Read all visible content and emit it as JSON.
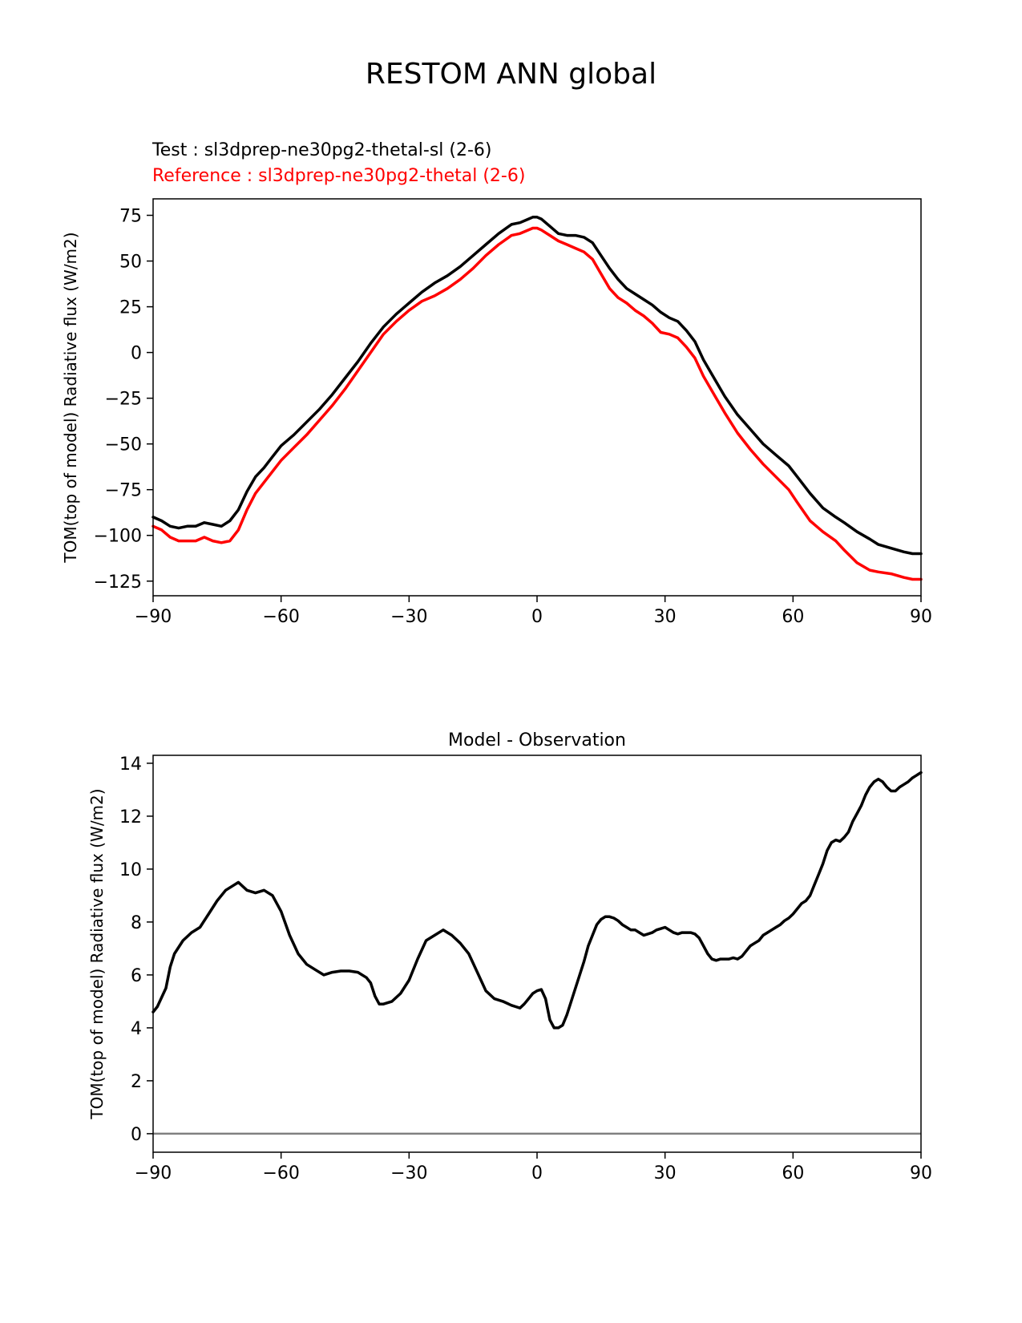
{
  "figure": {
    "title": "RESTOM ANN global",
    "test_label": "Test : sl3dprep-ne30pg2-thetal-sl (2-6)",
    "reference_label": "Reference : sl3dprep-ne30pg2-thetal (2-6)"
  },
  "colors": {
    "test": "#000000",
    "reference": "#ff0000",
    "zero_line": "#808080"
  },
  "chart_data": [
    {
      "type": "line",
      "title": "",
      "xlabel": "",
      "ylabel": "TOM(top of model) Radiative flux (W/m2)",
      "xlim": [
        -90,
        90
      ],
      "ylim": [
        -133,
        84
      ],
      "xticks": [
        -90,
        -60,
        -30,
        0,
        30,
        60,
        90
      ],
      "xtick_labels": [
        "−90",
        "−60",
        "−30",
        "0",
        "30",
        "60",
        "90"
      ],
      "yticks": [
        75,
        50,
        25,
        0,
        -25,
        -50,
        -75,
        -100,
        -125
      ],
      "ytick_labels": [
        "75",
        "50",
        "25",
        "0",
        "−25",
        "−50",
        "−75",
        "−100",
        "−125"
      ],
      "grid": false,
      "series": [
        {
          "name": "Test : sl3dprep-ne30pg2-thetal-sl (2-6)",
          "color": "#000000",
          "x": [
            -90,
            -88,
            -86,
            -84,
            -82,
            -80,
            -78,
            -76,
            -74,
            -72,
            -70,
            -68,
            -66,
            -64,
            -62,
            -60,
            -57,
            -54,
            -51,
            -48,
            -45,
            -42,
            -39,
            -36,
            -33,
            -30,
            -27,
            -24,
            -21,
            -18,
            -15,
            -12,
            -9,
            -6,
            -4,
            -2,
            -1,
            0,
            1,
            3,
            5,
            7,
            9,
            11,
            13,
            15,
            17,
            19,
            21,
            23,
            25,
            27,
            29,
            31,
            33,
            35,
            37,
            39,
            41,
            44,
            47,
            50,
            53,
            56,
            59,
            61,
            64,
            67,
            70,
            72,
            75,
            78,
            80,
            83,
            86,
            88,
            90
          ],
          "y": [
            -90,
            -92,
            -95,
            -96,
            -95,
            -95,
            -93,
            -94,
            -95,
            -92,
            -86,
            -76,
            -68,
            -63,
            -57,
            -51,
            -45,
            -38,
            -31,
            -23,
            -14,
            -5,
            5,
            14,
            21,
            27,
            33,
            38,
            42,
            47,
            53,
            59,
            65,
            70,
            71,
            73,
            74,
            74,
            73,
            69,
            65,
            64,
            64,
            63,
            60,
            53,
            46,
            40,
            35,
            32,
            29,
            26,
            22,
            19,
            17,
            12,
            6,
            -4,
            -12,
            -24,
            -34,
            -42,
            -50,
            -56,
            -62,
            -68,
            -77,
            -85,
            -90,
            -93,
            -98,
            -102,
            -105,
            -107,
            -109,
            -110,
            -110
          ]
        },
        {
          "name": "Reference : sl3dprep-ne30pg2-thetal (2-6)",
          "color": "#ff0000",
          "x": [
            -90,
            -88,
            -86,
            -84,
            -82,
            -80,
            -78,
            -76,
            -74,
            -72,
            -70,
            -68,
            -66,
            -64,
            -62,
            -60,
            -57,
            -54,
            -51,
            -48,
            -45,
            -42,
            -39,
            -36,
            -33,
            -30,
            -27,
            -24,
            -21,
            -18,
            -15,
            -12,
            -9,
            -6,
            -4,
            -2,
            -1,
            0,
            1,
            3,
            5,
            7,
            9,
            11,
            13,
            15,
            17,
            19,
            21,
            23,
            25,
            27,
            29,
            31,
            33,
            35,
            37,
            39,
            41,
            44,
            47,
            50,
            53,
            56,
            59,
            61,
            64,
            67,
            70,
            72,
            75,
            78,
            80,
            83,
            86,
            88,
            90
          ],
          "y": [
            -95,
            -97,
            -101,
            -103,
            -103,
            -103,
            -101,
            -103,
            -104,
            -103,
            -97,
            -86,
            -77,
            -71,
            -65,
            -59,
            -52,
            -45,
            -37,
            -29,
            -20,
            -10,
            0,
            10,
            17,
            23,
            28,
            31,
            35,
            40,
            46,
            53,
            59,
            64,
            65,
            67,
            68,
            68,
            67,
            64,
            61,
            59,
            57,
            55,
            51,
            43,
            35,
            30,
            27,
            23,
            20,
            16,
            11,
            10,
            8,
            3,
            -3,
            -13,
            -21,
            -33,
            -44,
            -53,
            -61,
            -68,
            -75,
            -82,
            -92,
            -98,
            -103,
            -108,
            -115,
            -119,
            -120,
            -121,
            -123,
            -124,
            -124
          ]
        }
      ]
    },
    {
      "type": "line",
      "title": "Model - Observation",
      "xlabel": "",
      "ylabel": "TOM(top of model) Radiative flux (W/m2)",
      "xlim": [
        -90,
        90
      ],
      "ylim": [
        -0.7,
        14.3
      ],
      "xticks": [
        -90,
        -60,
        -30,
        0,
        30,
        60,
        90
      ],
      "xtick_labels": [
        "−90",
        "−60",
        "−30",
        "0",
        "30",
        "60",
        "90"
      ],
      "yticks": [
        14,
        12,
        10,
        8,
        6,
        4,
        2,
        0
      ],
      "ytick_labels": [
        "14",
        "12",
        "10",
        "8",
        "6",
        "4",
        "2",
        "0"
      ],
      "grid": false,
      "zero_line": 0,
      "series": [
        {
          "color": "#000000",
          "x": [
            -90,
            -89,
            -87,
            -86,
            -85,
            -83,
            -81,
            -79,
            -77,
            -75,
            -73,
            -71,
            -70,
            -68,
            -66,
            -64,
            -62,
            -60,
            -58,
            -56,
            -54,
            -52,
            -50,
            -48,
            -46,
            -44,
            -42,
            -40,
            -39,
            -38,
            -37,
            -36,
            -34,
            -32,
            -30,
            -28,
            -26,
            -24,
            -22,
            -20,
            -18,
            -16,
            -14,
            -12,
            -10,
            -8,
            -6,
            -5,
            -4,
            -3,
            -2,
            -1,
            0,
            1,
            2,
            3,
            4,
            5,
            6,
            7,
            8,
            9,
            10,
            11,
            12,
            13,
            14,
            15,
            16,
            17,
            18,
            19,
            20,
            21,
            22,
            23,
            24,
            25,
            26,
            27,
            28,
            29,
            30,
            31,
            32,
            33,
            34,
            35,
            36,
            37,
            38,
            39,
            40,
            41,
            42,
            43,
            44,
            45,
            46,
            47,
            48,
            49,
            50,
            51,
            52,
            53,
            54,
            55,
            56,
            57,
            58,
            59,
            60,
            61,
            62,
            63,
            64,
            65,
            66,
            67,
            68,
            69,
            70,
            71,
            72,
            73,
            74,
            75,
            76,
            77,
            78,
            79,
            80,
            81,
            82,
            83,
            84,
            85,
            86,
            87,
            88,
            89,
            90
          ],
          "y": [
            4.6,
            4.8,
            5.5,
            6.3,
            6.8,
            7.3,
            7.6,
            7.8,
            8.3,
            8.8,
            9.2,
            9.4,
            9.5,
            9.2,
            9.1,
            9.2,
            9.0,
            8.4,
            7.5,
            6.8,
            6.4,
            6.2,
            6.0,
            6.1,
            6.15,
            6.15,
            6.1,
            5.9,
            5.7,
            5.2,
            4.9,
            4.9,
            5.0,
            5.3,
            5.8,
            6.6,
            7.3,
            7.5,
            7.7,
            7.5,
            7.2,
            6.8,
            6.1,
            5.4,
            5.1,
            5.0,
            4.85,
            4.8,
            4.75,
            4.9,
            5.1,
            5.3,
            5.4,
            5.45,
            5.1,
            4.3,
            4.0,
            4.0,
            4.1,
            4.5,
            5.0,
            5.5,
            6.0,
            6.5,
            7.1,
            7.5,
            7.9,
            8.1,
            8.2,
            8.2,
            8.15,
            8.05,
            7.9,
            7.8,
            7.7,
            7.7,
            7.6,
            7.5,
            7.55,
            7.6,
            7.7,
            7.75,
            7.8,
            7.7,
            7.6,
            7.55,
            7.6,
            7.6,
            7.6,
            7.55,
            7.4,
            7.1,
            6.8,
            6.6,
            6.55,
            6.6,
            6.6,
            6.6,
            6.65,
            6.6,
            6.7,
            6.9,
            7.1,
            7.2,
            7.3,
            7.5,
            7.6,
            7.7,
            7.8,
            7.9,
            8.05,
            8.15,
            8.3,
            8.5,
            8.7,
            8.8,
            9.0,
            9.4,
            9.8,
            10.2,
            10.7,
            11.0,
            11.1,
            11.05,
            11.2,
            11.4,
            11.8,
            12.1,
            12.4,
            12.8,
            13.1,
            13.3,
            13.4,
            13.3,
            13.1,
            12.95,
            12.95,
            13.1,
            13.2,
            13.3,
            13.45,
            13.55,
            13.65
          ]
        }
      ]
    }
  ]
}
